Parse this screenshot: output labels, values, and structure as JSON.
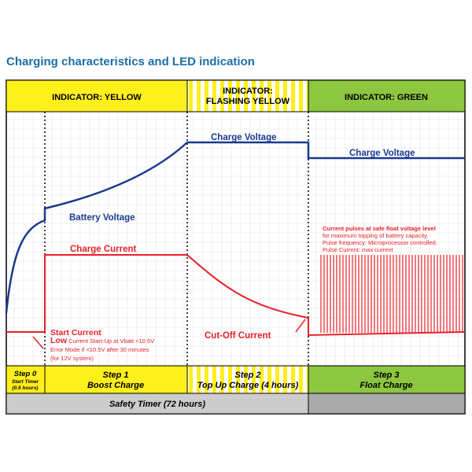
{
  "title": "Charging characteristics and LED indication",
  "colors": {
    "yellow": "#ffef1a",
    "green": "#8dc63f",
    "gray": "#cccccc",
    "grid": "#e4e4e4",
    "voltage_line": "#1a3a8f",
    "current_line": "#e8212a",
    "frame": "#000000"
  },
  "indicators": [
    {
      "label": "INDICATOR: YELLOW",
      "style": "solid-yellow"
    },
    {
      "label_line1": "INDICATOR:",
      "label_line2": "FLASHING YELLOW",
      "style": "striped-yellow"
    },
    {
      "label": "INDICATOR: GREEN",
      "style": "solid-green"
    }
  ],
  "curves": {
    "charge_voltage_1": "Charge Voltage",
    "charge_voltage_2": "Charge Voltage",
    "battery_voltage": "Battery Voltage",
    "charge_current": "Charge Current",
    "start_current": "Start Current",
    "cutoff_current": "Cut-Off Current"
  },
  "notes": {
    "low_bold": "Low",
    "low_rest": " Current Start-Up at Vbatt <10.5V",
    "error_line": "Error Mode if <10.5V after 30 minutes",
    "system_line": "(for 12V system)",
    "float_line1": "Current pulses at safe float voltage level",
    "float_line2": "for maximum topping of battery capacity.",
    "float_line3": "Pulse frequency: Microprocessor controlled.",
    "float_line4": "Pulse Current: max current"
  },
  "steps": [
    {
      "name": "Step 0",
      "desc1": "Start Timer",
      "desc2": "(0.5 hours)"
    },
    {
      "name": "Step 1",
      "desc": "Boost Charge"
    },
    {
      "name": "Step 2",
      "desc": "Top Up Charge (4 hours)"
    },
    {
      "name": "Step 3",
      "desc": "Float Charge"
    }
  ],
  "safety_timer": "Safety Timer (72 hours)"
}
